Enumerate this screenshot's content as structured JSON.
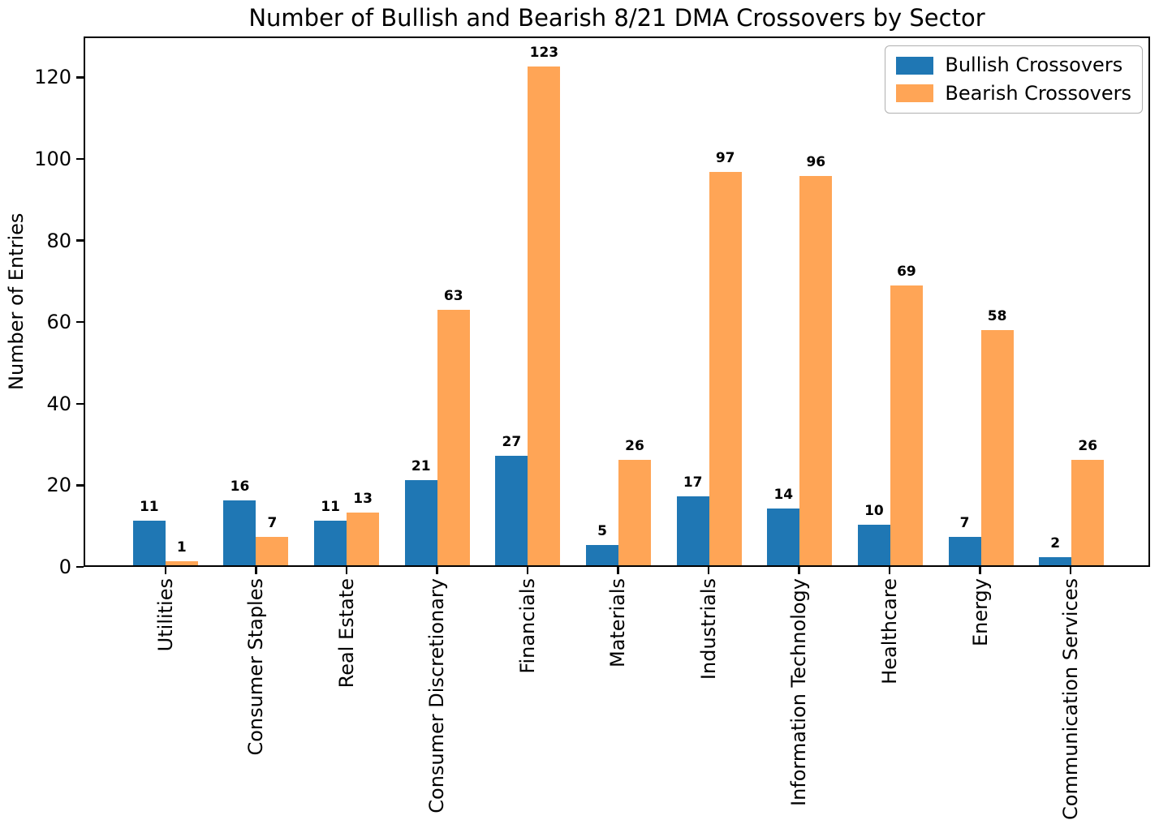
{
  "chart_data": {
    "type": "bar",
    "title": "Number of Bullish and Bearish 8/21 DMA Crossovers by Sector",
    "xlabel": "",
    "ylabel": "Number of Entries",
    "categories": [
      "Utilities",
      "Consumer Staples",
      "Real Estate",
      "Consumer Discretionary",
      "Financials",
      "Materials",
      "Industrials",
      "Information Technology",
      "Healthcare",
      "Energy",
      "Communication Services"
    ],
    "series": [
      {
        "name": "Bullish Crossovers",
        "color": "#1f77b4",
        "values": [
          11,
          16,
          11,
          21,
          27,
          5,
          17,
          14,
          10,
          7,
          2
        ]
      },
      {
        "name": "Bearish Crossovers",
        "color": "#ffa556",
        "values": [
          1,
          7,
          13,
          63,
          123,
          26,
          97,
          96,
          69,
          58,
          26
        ]
      }
    ],
    "yticks": [
      0,
      20,
      40,
      60,
      80,
      100,
      120
    ],
    "ylim": [
      0,
      130
    ],
    "xtick_rotation": 90,
    "bar_value_labels": true,
    "grid": false,
    "legend_position": "upper right",
    "axis_color": "#000000",
    "legend_border_color": "#b0b0b0"
  }
}
